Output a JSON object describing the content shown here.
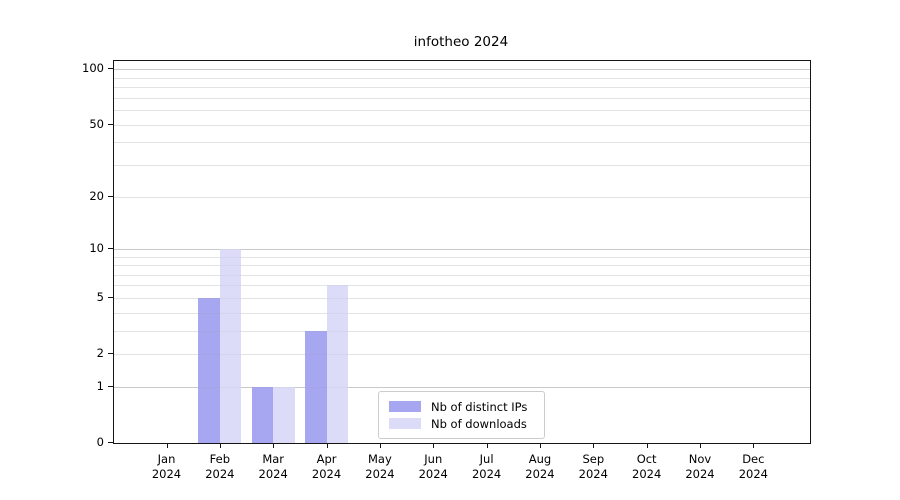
{
  "chart_data": {
    "type": "bar",
    "title": "infotheo 2024",
    "yscale": "log1p",
    "ylim": [
      0,
      111
    ],
    "grid": {
      "major_values": [
        1,
        10,
        100
      ],
      "minor_values": [
        2,
        3,
        4,
        5,
        6,
        7,
        8,
        9,
        20,
        30,
        40,
        50,
        60,
        70,
        80,
        90
      ],
      "major_color": "rgba(150,150,150,0.45)",
      "minor_color": "rgba(175,175,175,0.22)"
    },
    "y_ticks": [
      0,
      1,
      2,
      5,
      10,
      20,
      50,
      100
    ],
    "y_tick_labels": [
      "0",
      "1",
      "2",
      "5",
      "10",
      "20",
      "50",
      "100"
    ],
    "x_ticks": [
      {
        "month": "Jan",
        "year": "2024"
      },
      {
        "month": "Feb",
        "year": "2024"
      },
      {
        "month": "Mar",
        "year": "2024"
      },
      {
        "month": "Apr",
        "year": "2024"
      },
      {
        "month": "May",
        "year": "2024"
      },
      {
        "month": "Jun",
        "year": "2024"
      },
      {
        "month": "Jul",
        "year": "2024"
      },
      {
        "month": "Aug",
        "year": "2024"
      },
      {
        "month": "Sep",
        "year": "2024"
      },
      {
        "month": "Oct",
        "year": "2024"
      },
      {
        "month": "Nov",
        "year": "2024"
      },
      {
        "month": "Dec",
        "year": "2024"
      }
    ],
    "categories": [
      "Jan 2024",
      "Feb 2024",
      "Mar 2024",
      "Apr 2024",
      "May 2024",
      "Jun 2024",
      "Jul 2024",
      "Aug 2024",
      "Sep 2024",
      "Oct 2024",
      "Nov 2024",
      "Dec 2024"
    ],
    "series": [
      {
        "name": "Nb of distinct IPs",
        "color": "#a6a6f1",
        "values": [
          0,
          5,
          1,
          3,
          0,
          0,
          0,
          0,
          0,
          0,
          0,
          0
        ]
      },
      {
        "name": "Nb of downloads",
        "color": "#dcdcf8",
        "values": [
          0,
          10,
          1,
          6,
          0,
          0,
          0,
          0,
          0,
          0,
          0,
          0
        ]
      }
    ],
    "legend": {
      "position": "lower center"
    }
  }
}
